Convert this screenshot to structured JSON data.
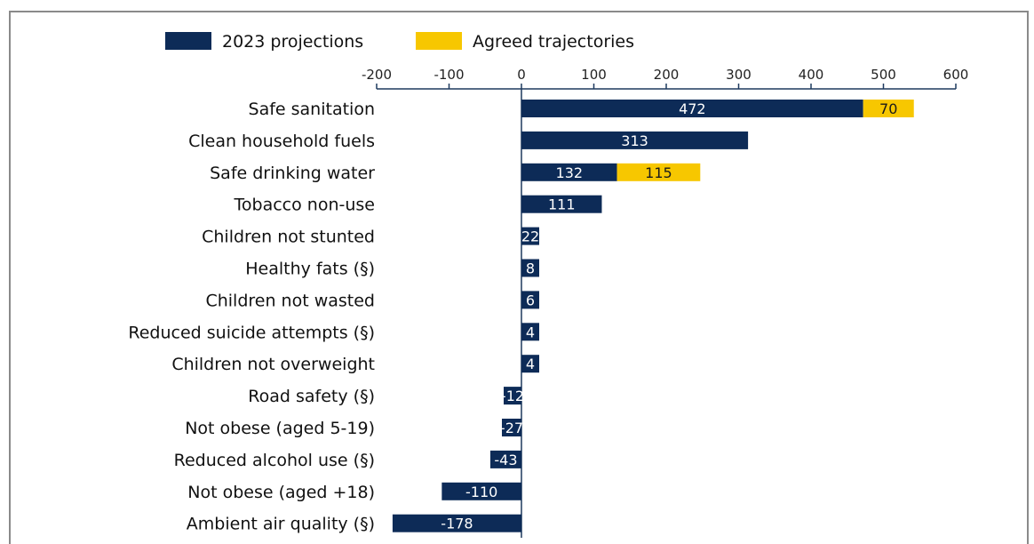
{
  "colors": {
    "projection": "#0d2b57",
    "agreed": "#f7c700",
    "axis": "#1e3a5f"
  },
  "legend": {
    "series_a": "2023 projections",
    "series_b": "Agreed trajectories"
  },
  "chart_data": {
    "type": "bar",
    "orientation": "horizontal",
    "stacked": true,
    "xlim": [
      -200,
      600
    ],
    "xticks": [
      -200,
      -100,
      0,
      100,
      200,
      300,
      400,
      500,
      600
    ],
    "xtick_labels": [
      "-200",
      "-100",
      "0",
      "100",
      "200",
      "300",
      "400",
      "500",
      "600"
    ],
    "categories": [
      "Safe sanitation",
      "Clean household fuels",
      "Safe drinking water",
      "Tobacco non-use",
      "Children not stunted",
      "Healthy fats (§)",
      "Children not wasted",
      "Reduced suicide attempts (§)",
      "Children not overweight",
      "Road safety (§)",
      "Not obese (aged 5-19)",
      "Reduced alcohol use (§)",
      "Not obese  (aged +18)",
      "Ambient air quality (§)"
    ],
    "series": [
      {
        "name": "2023 projections",
        "values": [
          472,
          313,
          132,
          111,
          22,
          8,
          6,
          4,
          4,
          -12,
          -27,
          -43,
          -110,
          -178
        ],
        "labels": [
          "472",
          "313",
          "132",
          "111",
          "22",
          "8",
          "6",
          "4",
          "4",
          "-12",
          "-27",
          "-43",
          "-110",
          "-178"
        ]
      },
      {
        "name": "Agreed trajectories",
        "values": [
          70,
          null,
          115,
          null,
          null,
          null,
          null,
          null,
          null,
          null,
          null,
          null,
          null,
          null
        ],
        "labels": [
          "70",
          "",
          "115",
          "",
          "",
          "",
          "",
          "",
          "",
          "",
          "",
          "",
          "",
          ""
        ]
      }
    ],
    "legend_position": "top",
    "grid": false
  }
}
